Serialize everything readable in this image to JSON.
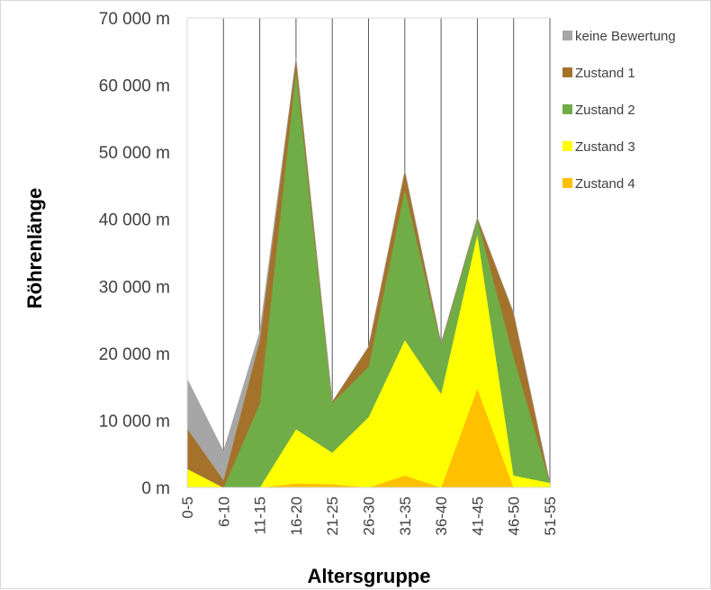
{
  "chart_data": {
    "type": "area",
    "stacked": true,
    "xlabel": "Altersgruppe",
    "ylabel": "Röhrenlänge",
    "ylim": [
      0,
      70000
    ],
    "yticks": [
      0,
      10000,
      20000,
      30000,
      40000,
      50000,
      60000,
      70000
    ],
    "ytick_labels": [
      "0 m",
      "10 000 m",
      "20 000 m",
      "30 000 m",
      "40 000 m",
      "50 000 m",
      "60 000 m",
      "70 000 m"
    ],
    "categories": [
      "0-5",
      "6-10",
      "11-15",
      "16-20",
      "21-25",
      "26-30",
      "31-35",
      "36-40",
      "41-45",
      "46-50",
      "51-55"
    ],
    "grid": "vertical",
    "legend_position": "right",
    "series": [
      {
        "name": "Zustand 4",
        "color": "#ffc000",
        "values": [
          0,
          0,
          0,
          600,
          500,
          0,
          1800,
          0,
          14800,
          0,
          0
        ]
      },
      {
        "name": "Zustand 3",
        "color": "#ffff00",
        "values": [
          2800,
          0,
          0,
          8100,
          4700,
          10500,
          20200,
          14000,
          23000,
          1800,
          700
        ]
      },
      {
        "name": "Zustand 2",
        "color": "#70ad47",
        "values": [
          0,
          0,
          12500,
          53500,
          7400,
          7500,
          22500,
          7300,
          2200,
          17700,
          0
        ]
      },
      {
        "name": "Zustand 1",
        "color": "#a5722c",
        "values": [
          6000,
          1100,
          9500,
          1800,
          200,
          3000,
          2700,
          200,
          200,
          6500,
          0
        ]
      },
      {
        "name": "keine Bewertung",
        "color": "#a6a6a6",
        "values": [
          7400,
          4300,
          1200,
          0,
          0,
          0,
          0,
          0,
          0,
          0,
          0
        ]
      }
    ],
    "legend_order": [
      "keine Bewertung",
      "Zustand 1",
      "Zustand 2",
      "Zustand 3",
      "Zustand 4"
    ]
  }
}
